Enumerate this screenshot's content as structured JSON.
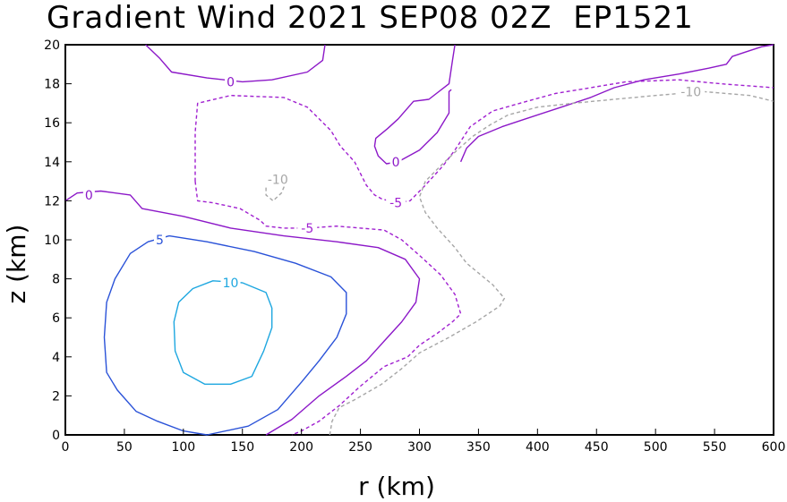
{
  "chart_data": {
    "type": "contour",
    "title": "Gradient Wind 2021 SEP08 02Z  EP1521",
    "xlabel": "r (km)",
    "ylabel": "z (km)",
    "xlim": [
      0,
      600
    ],
    "ylim": [
      0,
      20
    ],
    "x_ticks": [
      0,
      50,
      100,
      150,
      200,
      250,
      300,
      350,
      400,
      450,
      500,
      550,
      600
    ],
    "y_ticks": [
      0,
      2,
      4,
      6,
      8,
      10,
      12,
      14,
      16,
      18,
      20
    ],
    "grid": false,
    "colors": {
      "10": "#1ea7e0",
      "5": "#2a52d8",
      "0": "#8c18c8",
      "-5": "#a020d0",
      "-10": "#a6a6a6"
    },
    "contours": [
      {
        "level": "10",
        "style": "solid",
        "label_pos": [
          140,
          7.8
        ],
        "points": [
          [
            150,
            7.8
          ],
          [
            170,
            7.3
          ],
          [
            175,
            6.5
          ],
          [
            175,
            5.5
          ],
          [
            168,
            4.3
          ],
          [
            158,
            3.0
          ],
          [
            140,
            2.6
          ],
          [
            118,
            2.6
          ],
          [
            100,
            3.2
          ],
          [
            93,
            4.3
          ],
          [
            92,
            5.8
          ],
          [
            96,
            6.8
          ],
          [
            108,
            7.5
          ],
          [
            125,
            7.9
          ],
          [
            150,
            7.8
          ]
        ]
      },
      {
        "level": "5",
        "style": "solid",
        "label_pos": [
          80,
          10.0
        ],
        "points": [
          [
            88,
            10.2
          ],
          [
            120,
            9.9
          ],
          [
            160,
            9.4
          ],
          [
            195,
            8.8
          ],
          [
            225,
            8.1
          ],
          [
            238,
            7.3
          ],
          [
            238,
            6.2
          ],
          [
            230,
            5.0
          ],
          [
            215,
            3.8
          ],
          [
            200,
            2.7
          ],
          [
            180,
            1.3
          ],
          [
            155,
            0.45
          ],
          [
            120,
            0
          ],
          [
            100,
            0.2
          ],
          [
            78,
            0.7
          ],
          [
            60,
            1.2
          ],
          [
            44,
            2.3
          ],
          [
            35,
            3.2
          ],
          [
            33,
            5.0
          ],
          [
            35,
            6.8
          ],
          [
            42,
            8.0
          ],
          [
            55,
            9.3
          ],
          [
            70,
            9.9
          ],
          [
            88,
            10.2
          ]
        ]
      },
      {
        "level": "0",
        "style": "solid",
        "label_pos": [
          20,
          12.3
        ],
        "points": [
          [
            0,
            12.0
          ],
          [
            10,
            12.4
          ],
          [
            30,
            12.5
          ],
          [
            55,
            12.3
          ],
          [
            65,
            11.6
          ],
          [
            100,
            11.2
          ],
          [
            140,
            10.6
          ],
          [
            185,
            10.2
          ],
          [
            230,
            9.9
          ],
          [
            265,
            9.6
          ],
          [
            288,
            9.0
          ],
          [
            300,
            8.0
          ],
          [
            297,
            6.8
          ],
          [
            285,
            5.8
          ],
          [
            270,
            4.8
          ],
          [
            255,
            3.8
          ],
          [
            238,
            3.0
          ],
          [
            215,
            2.0
          ],
          [
            192,
            0.8
          ],
          [
            170,
            0
          ]
        ]
      },
      {
        "level": "0",
        "style": "solid",
        "label_pos": [
          140,
          18.1
        ],
        "points": [
          [
            68,
            20
          ],
          [
            80,
            19.3
          ],
          [
            90,
            18.6
          ],
          [
            120,
            18.3
          ],
          [
            150,
            18.1
          ],
          [
            175,
            18.2
          ],
          [
            205,
            18.6
          ],
          [
            218,
            19.2
          ],
          [
            220,
            20
          ]
        ]
      },
      {
        "level": "0",
        "style": "solid",
        "label_pos": [
          280,
          14.0
        ],
        "points": [
          [
            330,
            20
          ],
          [
            328,
            19.2
          ],
          [
            325,
            18.0
          ],
          [
            308,
            17.2
          ],
          [
            295,
            17.1
          ],
          [
            282,
            16.2
          ],
          [
            273,
            15.7
          ],
          [
            263,
            15.2
          ],
          [
            262,
            14.8
          ],
          [
            265,
            14.3
          ],
          [
            272,
            13.9
          ],
          [
            282,
            14.0
          ],
          [
            300,
            14.6
          ],
          [
            315,
            15.5
          ],
          [
            325,
            16.5
          ],
          [
            325,
            17.6
          ],
          [
            327,
            17.7
          ]
        ]
      },
      {
        "level": "0",
        "style": "solid",
        "label_pos": null,
        "points": [
          [
            600,
            20
          ],
          [
            590,
            19.9
          ],
          [
            575,
            19.6
          ],
          [
            565,
            19.4
          ],
          [
            560,
            19.0
          ],
          [
            545,
            18.8
          ],
          [
            520,
            18.5
          ],
          [
            490,
            18.2
          ],
          [
            465,
            17.8
          ],
          [
            445,
            17.3
          ],
          [
            420,
            16.8
          ],
          [
            390,
            16.2
          ],
          [
            370,
            15.8
          ],
          [
            350,
            15.3
          ],
          [
            340,
            14.7
          ],
          [
            335,
            14.0
          ]
        ]
      },
      {
        "level": "-5",
        "style": "dashed",
        "label_pos": [
          205,
          10.6
        ],
        "points": [
          [
            110,
            13.0
          ],
          [
            112,
            12.0
          ],
          [
            125,
            11.9
          ],
          [
            148,
            11.6
          ],
          [
            165,
            11.0
          ],
          [
            170,
            10.7
          ],
          [
            185,
            10.6
          ],
          [
            205,
            10.6
          ],
          [
            230,
            10.7
          ],
          [
            250,
            10.6
          ],
          [
            270,
            10.5
          ],
          [
            285,
            10.0
          ],
          [
            300,
            9.2
          ],
          [
            318,
            8.2
          ],
          [
            330,
            7.2
          ],
          [
            335,
            6.2
          ],
          [
            328,
            5.8
          ],
          [
            315,
            5.2
          ],
          [
            300,
            4.6
          ],
          [
            290,
            4.0
          ],
          [
            270,
            3.5
          ],
          [
            250,
            2.5
          ],
          [
            232,
            1.5
          ],
          [
            215,
            0.7
          ],
          [
            200,
            0.2
          ],
          [
            192,
            0
          ]
        ]
      },
      {
        "level": "-5",
        "style": "dashed",
        "label_pos": [
          280,
          11.9
        ],
        "points": [
          [
            110,
            13.0
          ],
          [
            110,
            15.5
          ],
          [
            112,
            17.0
          ],
          [
            140,
            17.4
          ],
          [
            185,
            17.3
          ],
          [
            205,
            16.8
          ],
          [
            215,
            16.2
          ],
          [
            225,
            15.6
          ],
          [
            233,
            14.8
          ],
          [
            245,
            14.0
          ],
          [
            255,
            12.8
          ],
          [
            262,
            12.3
          ],
          [
            268,
            12.1
          ],
          [
            280,
            11.9
          ],
          [
            292,
            12.0
          ],
          [
            305,
            12.8
          ],
          [
            320,
            13.8
          ],
          [
            330,
            14.6
          ],
          [
            343,
            15.8
          ],
          [
            362,
            16.6
          ],
          [
            385,
            17.0
          ],
          [
            415,
            17.5
          ],
          [
            445,
            17.8
          ],
          [
            475,
            18.1
          ],
          [
            520,
            18.2
          ],
          [
            555,
            18.0
          ],
          [
            600,
            17.8
          ]
        ]
      },
      {
        "level": "-10",
        "style": "dashed",
        "label_pos": [
          180,
          13.1
        ],
        "points": [
          [
            170,
            13.0
          ],
          [
            170,
            12.3
          ],
          [
            176,
            12.0
          ],
          [
            183,
            12.4
          ],
          [
            188,
            13.1
          ],
          [
            181,
            13.2
          ],
          [
            170,
            13.0
          ]
        ]
      },
      {
        "level": "-10",
        "style": "dashed",
        "label_pos": [
          530,
          17.6
        ],
        "points": [
          [
            224,
            0
          ],
          [
            226,
            0.7
          ],
          [
            232,
            1.4
          ],
          [
            245,
            1.8
          ],
          [
            268,
            2.6
          ],
          [
            285,
            3.4
          ],
          [
            300,
            4.2
          ],
          [
            325,
            5.0
          ],
          [
            348,
            5.8
          ],
          [
            368,
            6.6
          ],
          [
            372,
            7.0
          ],
          [
            362,
            7.7
          ],
          [
            350,
            8.3
          ],
          [
            340,
            8.8
          ],
          [
            330,
            9.6
          ],
          [
            315,
            10.6
          ],
          [
            305,
            11.4
          ],
          [
            300,
            12.2
          ],
          [
            305,
            13.0
          ],
          [
            318,
            13.8
          ],
          [
            332,
            14.6
          ],
          [
            345,
            15.3
          ],
          [
            360,
            15.9
          ],
          [
            375,
            16.4
          ],
          [
            400,
            16.8
          ],
          [
            430,
            17.0
          ],
          [
            465,
            17.2
          ],
          [
            500,
            17.4
          ],
          [
            540,
            17.6
          ],
          [
            580,
            17.4
          ],
          [
            600,
            17.1
          ]
        ]
      }
    ]
  }
}
